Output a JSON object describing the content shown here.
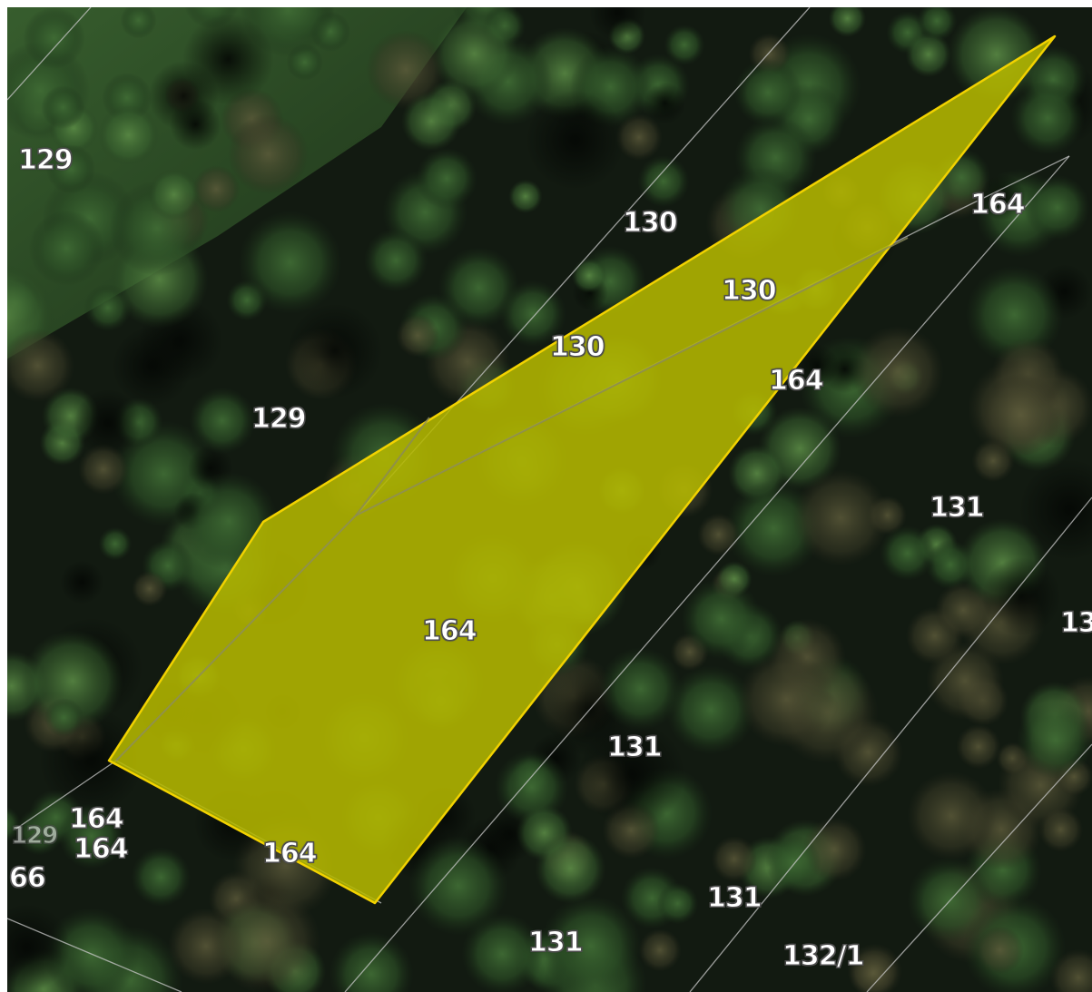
{
  "map": {
    "colors": {
      "highlight_fill": "#b8bb00",
      "highlight_stroke": "#f0d000",
      "boundary_line": "#c8c8c8",
      "label_text": "#ffffff",
      "label_outline": "#505050"
    },
    "layers": {
      "basemap": "satellite imagery (forest canopy)",
      "selected_parcel": "164",
      "cadastral_boundaries": true
    },
    "parcel_labels": [
      {
        "id": "label-129-a",
        "text": "129"
      },
      {
        "id": "label-130-a",
        "text": "130"
      },
      {
        "id": "label-164-a",
        "text": "164"
      },
      {
        "id": "label-130-b",
        "text": "130"
      },
      {
        "id": "label-130-c",
        "text": "130"
      },
      {
        "id": "label-164-b",
        "text": "164"
      },
      {
        "id": "label-129-b",
        "text": "129"
      },
      {
        "id": "label-131-a",
        "text": "131"
      },
      {
        "id": "label-13-edge",
        "text": "13"
      },
      {
        "id": "label-164-c",
        "text": "164"
      },
      {
        "id": "label-131-b",
        "text": "131"
      },
      {
        "id": "label-164-d",
        "text": "164"
      },
      {
        "id": "label-129-c",
        "text": "129"
      },
      {
        "id": "label-164-e",
        "text": "164"
      },
      {
        "id": "label-66-edge",
        "text": "66"
      },
      {
        "id": "label-164-f",
        "text": "164"
      },
      {
        "id": "label-131-c",
        "text": "131"
      },
      {
        "id": "label-131-d",
        "text": "131"
      },
      {
        "id": "label-132-1",
        "text": "132/1"
      }
    ]
  }
}
